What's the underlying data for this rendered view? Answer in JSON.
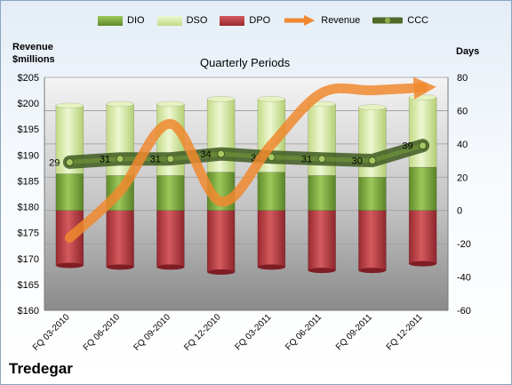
{
  "chart_data": {
    "type": "bar",
    "title": "Quarterly Periods",
    "company": "Tredegar",
    "ylabel_left": [
      "Revenue",
      "$millions"
    ],
    "ylabel_right": "Days",
    "categories": [
      "FQ 03-2010",
      "FQ 06-2010",
      "FQ 09-2010",
      "FQ 12-2010",
      "FQ 03-2011",
      "FQ 06-2011",
      "FQ 09-2011",
      "FQ 12-2011"
    ],
    "ylim_left": [
      160,
      205
    ],
    "left_ticks": [
      "$160",
      "$165",
      "$170",
      "$175",
      "$180",
      "$185",
      "$190",
      "$195",
      "$200",
      "$205"
    ],
    "ylim_right": [
      -60,
      80
    ],
    "right_ticks": [
      "-60",
      "-40",
      "-20",
      "0",
      "20",
      "40",
      "60",
      "80"
    ],
    "legend": [
      "DIO",
      "DSO",
      "DPO",
      "Revenue",
      "CCC"
    ],
    "series": [
      {
        "name": "DIO",
        "axis": "right",
        "values": [
          22,
          21,
          21,
          23,
          23,
          21,
          20,
          26
        ]
      },
      {
        "name": "DSO",
        "axis": "right",
        "values": [
          41,
          43,
          43,
          44,
          44,
          43,
          42,
          42
        ]
      },
      {
        "name": "DPO",
        "axis": "right",
        "values": [
          -33,
          -34,
          -34,
          -37,
          -34,
          -36,
          -36,
          -32
        ]
      },
      {
        "name": "Revenue",
        "axis": "left",
        "values": [
          174,
          183,
          196,
          181,
          192,
          202,
          202.5,
          203
        ]
      },
      {
        "name": "CCC",
        "axis": "right",
        "values": [
          29,
          31,
          31,
          34,
          32,
          31,
          30,
          39
        ],
        "labels": [
          "29",
          "31",
          "31",
          "34",
          "32",
          "31",
          "30",
          "39"
        ]
      }
    ],
    "colors": {
      "DIO": "#77a63c",
      "DSO": "#cfe39a",
      "DPO": "#b4353c",
      "Revenue": "#f0882e",
      "CCC": "#4e6b2a"
    },
    "grid": true,
    "legend_position": "top"
  }
}
